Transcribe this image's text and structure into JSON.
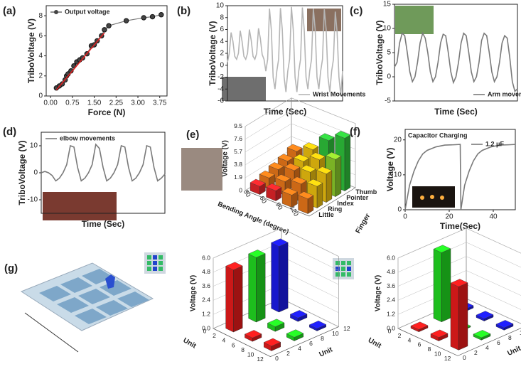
{
  "chart_data": [
    {
      "type": "line",
      "label": "(a)",
      "xlabel": "Force (N)",
      "ylabel": "TriboVoltage (V)",
      "legend": "upper left",
      "xlim": [
        -0.15,
        4.0
      ],
      "ylim": [
        0,
        9
      ],
      "xticks": [
        {
          "value": 0,
          "label": "0.00"
        },
        {
          "value": 0.75,
          "label": "0.75"
        },
        {
          "value": 1.5,
          "label": "1.50"
        },
        {
          "value": 2.25,
          "label": "2.25"
        },
        {
          "value": 3,
          "label": "3.00"
        },
        {
          "value": 3.75,
          "label": "3.75"
        }
      ],
      "yticks": [
        0,
        2,
        4,
        6,
        8
      ],
      "series": [
        {
          "name": "Output voltage",
          "color": "#777777",
          "marker": true,
          "x": [
            0.2,
            0.3,
            0.4,
            0.5,
            0.55,
            0.6,
            0.7,
            0.8,
            0.9,
            1.0,
            1.1,
            1.25,
            1.4,
            1.5,
            1.6,
            1.75,
            1.85,
            2.0,
            2.6,
            3.2,
            3.5,
            3.8
          ],
          "values": [
            0.8,
            1.0,
            1.2,
            1.6,
            2.0,
            2.2,
            2.5,
            3.0,
            3.4,
            3.6,
            3.8,
            4.2,
            5.0,
            5.1,
            5.5,
            6.0,
            6.6,
            7.0,
            7.5,
            7.8,
            7.9,
            8.1
          ]
        },
        {
          "color": "#e02020",
          "x": [
            0.2,
            1.85
          ],
          "values": [
            0.6,
            6.3
          ]
        }
      ]
    },
    {
      "type": "line",
      "label": "(b)",
      "xlabel": "Time (Sec)",
      "ylabel": "TriboVoltage (V)",
      "legend": "lower right",
      "ylim": [
        -6,
        10
      ],
      "yticks": [
        -6,
        -4,
        -2,
        0,
        2,
        4,
        6,
        8,
        10
      ],
      "series": [
        {
          "name": "Wrist Movements",
          "color": "#b5b5b5",
          "values": [
            0.5,
            2,
            5.5,
            4,
            1.5,
            1,
            2,
            5.8,
            4,
            1.5,
            1,
            2,
            6,
            4.2,
            1.5,
            1,
            2,
            6.2,
            4.5,
            1.8,
            1,
            -1,
            1,
            9.5,
            6,
            -2,
            -4,
            -1,
            1,
            9.6,
            6,
            -2,
            -4.5,
            -1,
            1,
            9.8,
            6,
            -2,
            -4.5,
            -1,
            1,
            9.7,
            6,
            -2,
            -4,
            -1,
            1,
            9.5,
            6,
            -2,
            -4,
            -1,
            1,
            9.4,
            6,
            -2,
            -4.5,
            -1,
            1,
            9.0,
            5.5,
            -2,
            -5,
            -1
          ]
        }
      ]
    },
    {
      "type": "line",
      "label": "(c)",
      "xlabel": "Time (Sec)",
      "ylabel": "TriboVoltage (V)",
      "legend": "lower right",
      "ylim": [
        -5,
        15
      ],
      "yticks": [
        -5,
        0,
        5,
        10,
        15
      ],
      "series": [
        {
          "name": "Arm movements",
          "color": "#7a7a7a",
          "values": [
            2,
            3,
            7,
            9,
            8.5,
            5,
            1,
            -1,
            0,
            3,
            7,
            9,
            8,
            5,
            1,
            -1,
            0,
            3,
            7,
            8.8,
            8.5,
            5,
            1,
            -1.2,
            0,
            3,
            7,
            9,
            8.5,
            5,
            1,
            -1,
            0,
            3,
            7.5,
            9,
            8.5,
            5,
            1,
            -1,
            0,
            3,
            7,
            8.5,
            8,
            4,
            -1,
            -3,
            -2.5
          ]
        }
      ]
    },
    {
      "type": "line",
      "label": "(d)",
      "xlabel": "Time (Sec)",
      "ylabel": "TriboVoltage (V)",
      "legend": "upper left",
      "ylim": [
        -15,
        15
      ],
      "yticks": [
        -10,
        0,
        10
      ],
      "series": [
        {
          "name": "elbow movements",
          "color": "#7a7a7a",
          "values": [
            0,
            0.5,
            0,
            -1,
            -3,
            -2,
            0,
            3,
            10,
            9.5,
            2,
            -3,
            -2,
            0,
            3,
            10.5,
            9,
            2,
            -3,
            -2,
            0,
            3,
            10,
            9.5,
            2,
            -3,
            -2,
            0,
            3,
            10,
            9.5,
            2,
            -3,
            -2,
            -0.5
          ]
        }
      ]
    },
    {
      "type": "bar3d",
      "label": "(e)",
      "xlabel": "Bending Angle (degree)",
      "ylabel": "Finger",
      "zlabel": "Voltage (V)",
      "categories": [
        "30",
        "60",
        "90",
        "120"
      ],
      "fingers": [
        "Little",
        "Ring",
        "Index",
        "Pointer",
        "Thumb"
      ],
      "zlim": [
        0,
        9.5
      ],
      "zticks": [
        0,
        1.9,
        3.8,
        5.7,
        7.6,
        9.5
      ],
      "colorscale": [
        "#e8262a",
        "#f07a1a",
        "#f2c40f",
        "#8fd12c",
        "#2fc63c",
        "#1e8fdb"
      ],
      "values": [
        [
          1.2,
          1.5,
          1.8,
          2.2
        ],
        [
          1.6,
          2.0,
          2.6,
          3.2
        ],
        [
          2.0,
          2.8,
          3.5,
          4.2
        ],
        [
          2.4,
          3.3,
          4.5,
          5.5
        ],
        [
          3.0,
          4.2,
          6.5,
          7.8
        ]
      ]
    },
    {
      "type": "line",
      "label": "(f)",
      "annotation": "Capacitor Charging",
      "xlabel": "Time(Sec)",
      "ylabel": "Voltage (V)",
      "legend": "upper right",
      "xlim": [
        0,
        50
      ],
      "ylim": [
        0,
        23
      ],
      "xticks": [
        0,
        20,
        40
      ],
      "yticks": [
        0,
        10,
        20
      ],
      "series": [
        {
          "name": "1.2 μF",
          "color": "#7a7a7a",
          "x": [
            0,
            2,
            4,
            6,
            8,
            10,
            14,
            18,
            22,
            25,
            25.3,
            27,
            29,
            31,
            33,
            35,
            39,
            43,
            47,
            50
          ],
          "values": [
            0,
            7,
            11,
            14,
            16,
            17,
            18,
            18.5,
            18.6,
            18.7,
            0,
            7,
            11,
            14,
            16,
            17,
            18,
            18.5,
            18.6,
            18.7
          ]
        }
      ]
    },
    {
      "type": "bar3d_grid",
      "label": "(g)",
      "xlabel": "Unit",
      "ylabel": "Unit",
      "zlabel": "Voltage (V)",
      "xlim": [
        0,
        12
      ],
      "ylim": [
        0,
        12
      ],
      "zlim": [
        0,
        6
      ],
      "xticks": [
        0,
        2,
        4,
        6,
        8,
        10,
        12
      ],
      "yticks": [
        0,
        2,
        4,
        6,
        8,
        10,
        12
      ],
      "zticks": [
        {
          "value": 0,
          "label": "0.0"
        },
        {
          "value": 1.2,
          "label": "1.2"
        },
        {
          "value": 2.4,
          "label": "2.4"
        },
        {
          "value": 3.6,
          "label": "3.6"
        },
        {
          "value": 4.8,
          "label": "4.8"
        },
        {
          "value": 6,
          "label": "6.0"
        }
      ],
      "bars": [
        {
          "x": 2,
          "y": 2,
          "value": 5.3,
          "color": "#f01c1c"
        },
        {
          "x": 2,
          "y": 6,
          "value": 5.5,
          "color": "#22e022"
        },
        {
          "x": 2,
          "y": 10,
          "value": 5.6,
          "color": "#1c1cf0"
        },
        {
          "x": 6,
          "y": 2,
          "value": 0.3,
          "color": "#f01c1c"
        },
        {
          "x": 6,
          "y": 6,
          "value": 0.4,
          "color": "#22e022"
        },
        {
          "x": 6,
          "y": 10,
          "value": 0.3,
          "color": "#1c1cf0"
        },
        {
          "x": 10,
          "y": 2,
          "value": 0.4,
          "color": "#f01c1c"
        },
        {
          "x": 10,
          "y": 6,
          "value": 0.3,
          "color": "#22e022"
        },
        {
          "x": 10,
          "y": 10,
          "value": 0.2,
          "color": "#1c1cf0"
        }
      ]
    },
    {
      "type": "bar3d_grid",
      "xlabel": "Unit",
      "ylabel": "Unit",
      "zlabel": "Voltage (V)",
      "xlim": [
        0,
        12
      ],
      "ylim": [
        0,
        12
      ],
      "zlim": [
        0,
        6
      ],
      "xticks": [
        0,
        2,
        4,
        6,
        8,
        10,
        12
      ],
      "yticks": [
        0,
        2,
        4,
        6,
        8,
        10,
        12
      ],
      "zticks": [
        {
          "value": 0,
          "label": "0.0"
        },
        {
          "value": 1.2,
          "label": "1.2"
        },
        {
          "value": 2.4,
          "label": "2.4"
        },
        {
          "value": 3.6,
          "label": "3.6"
        },
        {
          "value": 4.8,
          "label": "4.8"
        },
        {
          "value": 6,
          "label": "6.0"
        }
      ],
      "bars": [
        {
          "x": 2,
          "y": 2,
          "value": 0.2,
          "color": "#f01c1c"
        },
        {
          "x": 2,
          "y": 6,
          "value": 5.9,
          "color": "#22e022"
        },
        {
          "x": 2,
          "y": 10,
          "value": 0.2,
          "color": "#1c1cf0"
        },
        {
          "x": 6,
          "y": 2,
          "value": 0.3,
          "color": "#f01c1c"
        },
        {
          "x": 6,
          "y": 6,
          "value": 0.1,
          "color": "#22e022"
        },
        {
          "x": 6,
          "y": 10,
          "value": 0.2,
          "color": "#1c1cf0"
        },
        {
          "x": 10,
          "y": 2,
          "value": 5.4,
          "color": "#f01c1c"
        },
        {
          "x": 10,
          "y": 6,
          "value": 0.2,
          "color": "#22e022"
        },
        {
          "x": 10,
          "y": 10,
          "value": 0.2,
          "color": "#1c1cf0"
        }
      ]
    }
  ]
}
